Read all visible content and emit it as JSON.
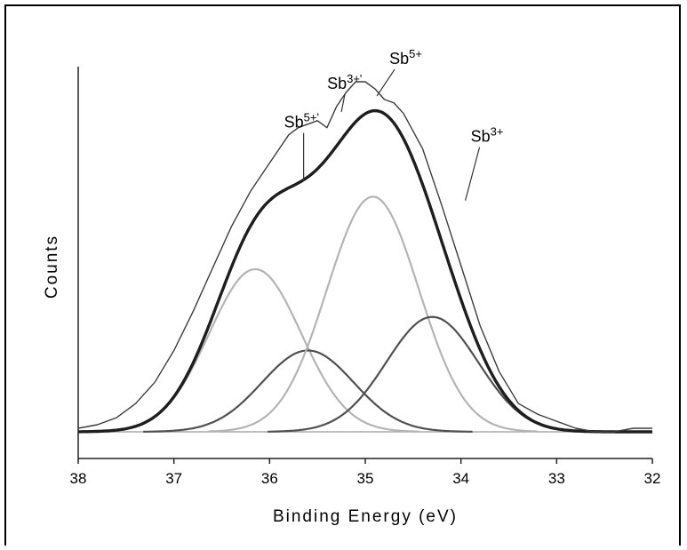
{
  "chart_data": {
    "type": "line",
    "title": "",
    "xlabel": "Binding Energy (eV)",
    "ylabel": "Counts",
    "xlim": [
      38,
      32
    ],
    "x_reversed": true,
    "ylim": [
      0,
      1.0
    ],
    "x_ticks": [
      38,
      37,
      36,
      35,
      34,
      33,
      32
    ],
    "x_tick_labels": [
      "38",
      "37",
      "36",
      "35",
      "34",
      "33",
      "32"
    ],
    "grid": false,
    "legend": "none",
    "annotations": [
      {
        "text": "Sb",
        "sup": "5+'",
        "x": 35.7,
        "y": 0.86
      },
      {
        "text": "Sb",
        "sup": "3+'",
        "x": 35.25,
        "y": 0.97
      },
      {
        "text": "Sb",
        "sup": "5+",
        "x": 34.6,
        "y": 1.04
      },
      {
        "text": "Sb",
        "sup": "3+",
        "x": 33.75,
        "y": 0.82
      }
    ],
    "series": [
      {
        "color": "#b4b4b4",
        "width": 2.2,
        "kind": "gauss",
        "center": 36.15,
        "height": 0.46,
        "sigma": 0.48
      },
      {
        "color": "#505050",
        "width": 2.2,
        "kind": "gauss",
        "center": 35.6,
        "height": 0.23,
        "sigma": 0.48
      },
      {
        "color": "#b4b4b4",
        "width": 2.2,
        "kind": "gauss",
        "center": 34.92,
        "height": 0.665,
        "sigma": 0.48
      },
      {
        "color": "#505050",
        "width": 2.2,
        "kind": "gauss",
        "center": 34.3,
        "height": 0.325,
        "sigma": 0.48
      },
      {
        "color": "#1e1e1e",
        "width": 3.4,
        "kind": "envelope"
      },
      {
        "color": "#3c3c3c",
        "width": 1.4,
        "kind": "raw",
        "x": [
          38.0,
          37.8,
          37.6,
          37.4,
          37.2,
          37.0,
          36.8,
          36.6,
          36.4,
          36.2,
          36.0,
          35.9,
          35.8,
          35.7,
          35.6,
          35.5,
          35.4,
          35.3,
          35.2,
          35.1,
          35.0,
          34.9,
          34.8,
          34.7,
          34.6,
          34.4,
          34.2,
          34.0,
          33.8,
          33.6,
          33.4,
          33.2,
          33.0,
          32.8,
          32.6,
          32.4,
          32.2,
          32.0
        ],
        "y": [
          0.01,
          0.02,
          0.04,
          0.08,
          0.14,
          0.23,
          0.34,
          0.46,
          0.58,
          0.68,
          0.76,
          0.8,
          0.84,
          0.86,
          0.87,
          0.88,
          0.86,
          0.92,
          0.96,
          0.99,
          0.99,
          0.97,
          0.94,
          0.93,
          0.9,
          0.8,
          0.64,
          0.47,
          0.3,
          0.17,
          0.08,
          0.05,
          0.03,
          0.01,
          0.0,
          0.0,
          0.01,
          0.01
        ]
      }
    ]
  }
}
